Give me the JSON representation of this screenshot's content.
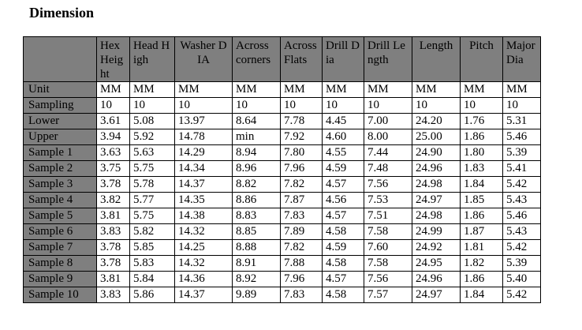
{
  "title": "Dimension",
  "columns": [
    {
      "label": "Hex\nHeight",
      "align": "left"
    },
    {
      "label": "Head High",
      "align": "left"
    },
    {
      "label": "Washer DIA",
      "align": "center"
    },
    {
      "label": "Across corners",
      "align": "left"
    },
    {
      "label": "Across Flats",
      "align": "left"
    },
    {
      "label": "Drill Dia",
      "align": "left"
    },
    {
      "label": "Drill Length",
      "align": "left"
    },
    {
      "label": "Length",
      "align": "center"
    },
    {
      "label": "Pitch",
      "align": "center"
    },
    {
      "label": "Major Dia",
      "align": "left"
    }
  ],
  "rows": [
    {
      "label": "Unit",
      "values": [
        "MM",
        "MM",
        "MM",
        "MM",
        "MM",
        "MM",
        "MM",
        "MM",
        "MM",
        "MM"
      ]
    },
    {
      "label": "Sampling",
      "values": [
        "10",
        "10",
        "10",
        "10",
        "10",
        "10",
        "10",
        "10",
        "10",
        "10"
      ]
    },
    {
      "label": "Lower",
      "values": [
        "3.61",
        "5.08",
        "13.97",
        "8.64",
        "7.78",
        "4.45",
        "7.00",
        "24.20",
        "1.76",
        "5.31"
      ]
    },
    {
      "label": "Upper",
      "values": [
        "3.94",
        "5.92",
        "14.78",
        "min",
        "7.92",
        "4.60",
        "8.00",
        "25.00",
        "1.86",
        "5.46"
      ]
    },
    {
      "label": "Sample 1",
      "values": [
        "3.63",
        "5.63",
        "14.29",
        "8.94",
        "7.80",
        "4.55",
        "7.44",
        "24.90",
        "1.80",
        "5.39"
      ]
    },
    {
      "label": "Sample 2",
      "values": [
        "3.75",
        "5.75",
        "14.34",
        "8.96",
        "7.96",
        "4.59",
        "7.48",
        "24.96",
        "1.83",
        "5.41"
      ]
    },
    {
      "label": "Sample 3",
      "values": [
        "3.78",
        "5.78",
        "14.37",
        "8.82",
        "7.82",
        "4.57",
        "7.56",
        "24.98",
        "1.84",
        "5.42"
      ]
    },
    {
      "label": "Sample 4",
      "values": [
        "3.82",
        "5.77",
        "14.35",
        "8.86",
        "7.87",
        "4.56",
        "7.53",
        "24.97",
        "1.85",
        "5.43"
      ]
    },
    {
      "label": "Sample 5",
      "values": [
        "3.81",
        "5.75",
        "14.38",
        "8.83",
        "7.83",
        "4.57",
        "7.51",
        "24.98",
        "1.86",
        "5.46"
      ]
    },
    {
      "label": "Sample 6",
      "values": [
        "3.83",
        "5.82",
        "14.32",
        "8.85",
        "7.89",
        "4.58",
        "7.58",
        "24.99",
        "1.87",
        "5.43"
      ]
    },
    {
      "label": "Sample 7",
      "values": [
        "3.78",
        "5.85",
        "14.25",
        "8.88",
        "7.82",
        "4.59",
        "7.60",
        "24.92",
        "1.81",
        "5.42"
      ]
    },
    {
      "label": "Sample 8",
      "values": [
        "3.78",
        "5.83",
        "14.32",
        "8.91",
        "7.88",
        "4.58",
        "7.58",
        "24.95",
        "1.82",
        "5.39"
      ]
    },
    {
      "label": "Sample 9",
      "values": [
        "3.81",
        "5.84",
        "14.36",
        "8.92",
        "7.96",
        "4.57",
        "7.56",
        "24.96",
        "1.86",
        "5.40"
      ]
    },
    {
      "label": "Sample 10",
      "values": [
        "3.83",
        "5.86",
        "14.37",
        "9.89",
        "7.83",
        "4.58",
        "7.57",
        "24.97",
        "1.84",
        "5.42"
      ]
    }
  ]
}
